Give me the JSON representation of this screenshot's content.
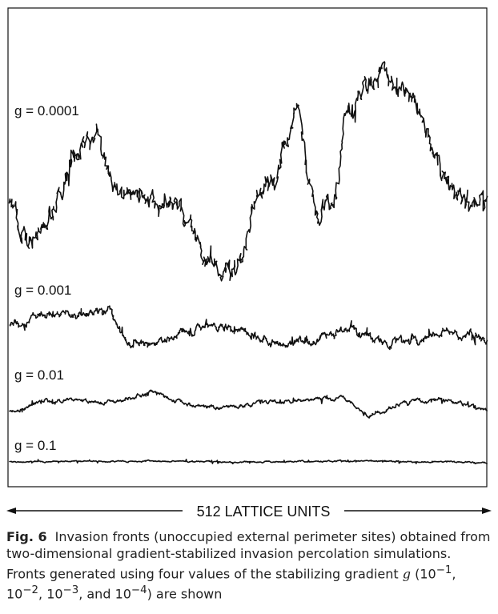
{
  "figure": {
    "fronts": [
      {
        "g_label": "g = 0.0001",
        "roughness": 1.0
      },
      {
        "g_label": "g = 0.001",
        "roughness": 0.45
      },
      {
        "g_label": "g = 0.01",
        "roughness": 0.22
      },
      {
        "g_label": "g = 0.1",
        "roughness": 0.06
      }
    ],
    "scale_label": "512 LATTICE UNITS"
  },
  "caption": {
    "fig_number": "Fig. 6",
    "text_1": "Invasion fronts (unoccupied external perimeter sites) obtained from two-dimensional gradient-stabilized invasion percolation simulations. Fronts generated using four values of the stabilizing gradient ",
    "var": "g",
    "text_2": " (10",
    "e1": "−1",
    "sep1": ", 10",
    "e2": "−2",
    "sep2": ", 10",
    "e3": "−3",
    "sep3": ", and 10",
    "e4": "−4",
    "text_3": ") are shown"
  }
}
